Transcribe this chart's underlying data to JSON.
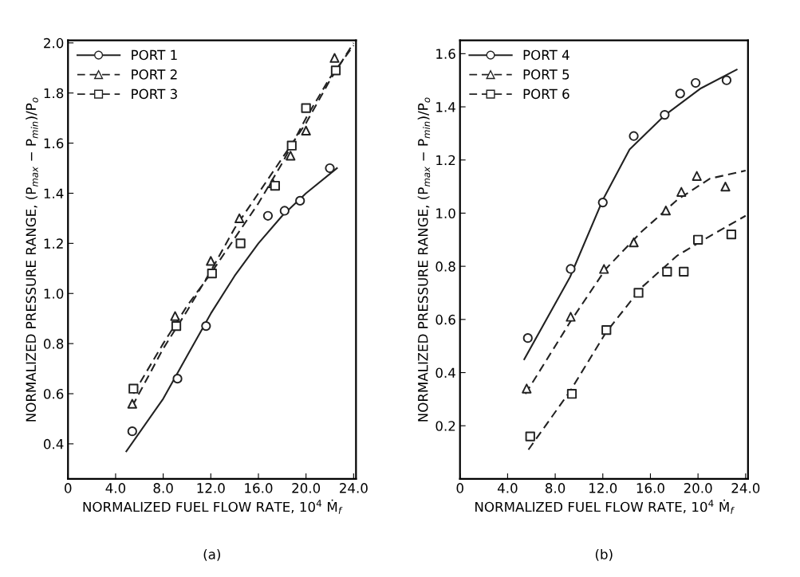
{
  "chart_data": [
    {
      "type": "scatter",
      "xlabel": "NORMALIZED FUEL FLOW RATE, 10$^{4}$ Ṁ$_{f}$",
      "ylabel": "NORMALIZED PRESSURE RANGE, (P$_{max}$ − P$_{min}$)/P$_{o}$",
      "annotations": [
        "(a)"
      ],
      "xlim": [
        0,
        24.2
      ],
      "xticks": [
        0,
        {
          "value": 4,
          "label": "4.0"
        },
        {
          "value": 8,
          "label": "8.0"
        },
        {
          "value": 12,
          "label": "12.0"
        },
        {
          "value": 16,
          "label": "16.0"
        },
        {
          "value": 20,
          "label": "20.0"
        },
        {
          "value": 24,
          "label": "24.0"
        }
      ],
      "ylim": [
        0.26,
        2.01
      ],
      "yticks": [
        {
          "value": 0.4,
          "label": "0.4"
        },
        {
          "value": 0.6,
          "label": "0.6"
        },
        {
          "value": 0.8,
          "label": "0.8"
        },
        {
          "value": 1.0,
          "label": "1.0"
        },
        {
          "value": 1.2,
          "label": "1.2"
        },
        {
          "value": 1.4,
          "label": "1.4"
        },
        {
          "value": 1.6,
          "label": "1.6"
        },
        {
          "value": 1.8,
          "label": "1.8"
        },
        {
          "value": 2.0,
          "label": "2.0"
        }
      ],
      "grid": false,
      "legend": "top left",
      "series": [
        {
          "name": "PORT 1",
          "marker": "circle",
          "line_style": "solid",
          "color": "#222222",
          "x": [
            5.4,
            9.2,
            11.6,
            16.8,
            18.2,
            19.5,
            22.0
          ],
          "values": [
            0.45,
            0.66,
            0.87,
            1.31,
            1.33,
            1.37,
            1.5
          ]
        },
        {
          "name": "PORT 2",
          "marker": "triangle",
          "line_style": "dashed",
          "color": "#222222",
          "x": [
            5.4,
            9.0,
            12.0,
            14.4,
            17.2,
            18.7,
            20.0,
            22.4
          ],
          "values": [
            0.56,
            0.91,
            1.13,
            1.3,
            1.44,
            1.55,
            1.65,
            1.94
          ]
        },
        {
          "name": "PORT 3",
          "marker": "square",
          "line_style": "dashed",
          "color": "#222222",
          "x": [
            5.5,
            9.1,
            12.1,
            14.5,
            17.4,
            18.8,
            20.0,
            22.5
          ],
          "values": [
            0.62,
            0.87,
            1.08,
            1.2,
            1.43,
            1.59,
            1.74,
            1.89
          ]
        },
        {
          "type": "line",
          "line_style": "solid",
          "color": "#222222",
          "x": [
            4.9,
            8,
            10,
            12,
            14,
            16,
            18,
            20,
            22.6
          ],
          "values": [
            0.37,
            0.58,
            0.75,
            0.92,
            1.07,
            1.2,
            1.31,
            1.4,
            1.5
          ]
        },
        {
          "type": "line",
          "line_style": "dashed",
          "color": "#222222",
          "x": [
            5.4,
            8,
            10,
            12,
            14,
            16,
            18,
            20,
            22,
            24
          ],
          "values": [
            0.55,
            0.78,
            0.93,
            1.09,
            1.26,
            1.4,
            1.54,
            1.68,
            1.85,
            2.0
          ]
        },
        {
          "type": "line",
          "line_style": "dashed",
          "color": "#222222",
          "x": [
            5.5,
            8,
            10,
            12,
            14,
            16,
            18,
            20,
            22,
            24
          ],
          "values": [
            0.6,
            0.8,
            0.95,
            1.08,
            1.22,
            1.36,
            1.52,
            1.7,
            1.86,
            1.99
          ]
        }
      ]
    },
    {
      "type": "scatter",
      "xlabel": "NORMALIZED FUEL FLOW RATE, 10$^{4}$ Ṁ$_{f}$",
      "ylabel": "NORMALIZED PRESSURE RANGE, (P$_{max}$ − P$_{min}$)/P$_{o}$",
      "annotations": [
        "(b)"
      ],
      "xlim": [
        0,
        24.2
      ],
      "xticks": [
        0,
        {
          "value": 4,
          "label": "4.0"
        },
        {
          "value": 8,
          "label": "8.0"
        },
        {
          "value": 12,
          "label": "12.0"
        },
        {
          "value": 16,
          "label": "16.0"
        },
        {
          "value": 20,
          "label": "20.0"
        },
        {
          "value": 24,
          "label": "24.0"
        }
      ],
      "ylim": [
        0,
        1.65
      ],
      "yticks": [
        {
          "value": 0.2,
          "label": "0.2"
        },
        {
          "value": 0.4,
          "label": "0.4"
        },
        {
          "value": 0.6,
          "label": "0.6"
        },
        {
          "value": 0.8,
          "label": "0.8"
        },
        {
          "value": 1.0,
          "label": "1.0"
        },
        {
          "value": 1.2,
          "label": "1.2"
        },
        {
          "value": 1.4,
          "label": "1.4"
        },
        {
          "value": 1.6,
          "label": "1.6"
        }
      ],
      "grid": false,
      "legend": "top left",
      "series": [
        {
          "name": "PORT 4",
          "marker": "circle",
          "line_style": "solid",
          "color": "#222222",
          "x": [
            5.7,
            9.3,
            12.0,
            14.6,
            17.2,
            18.5,
            19.8,
            22.4
          ],
          "values": [
            0.53,
            0.79,
            1.04,
            1.29,
            1.37,
            1.45,
            1.49,
            1.5
          ]
        },
        {
          "name": "PORT 5",
          "marker": "triangle",
          "line_style": "dashed",
          "color": "#222222",
          "x": [
            5.6,
            9.3,
            12.1,
            14.6,
            17.3,
            18.6,
            19.9,
            22.3
          ],
          "values": [
            0.34,
            0.61,
            0.79,
            0.89,
            1.01,
            1.08,
            1.14,
            1.1
          ]
        },
        {
          "name": "PORT 6",
          "marker": "square",
          "line_style": "dashed",
          "color": "#222222",
          "x": [
            5.9,
            9.4,
            12.3,
            15.0,
            17.4,
            18.8,
            20.0,
            22.8
          ],
          "values": [
            0.16,
            0.32,
            0.56,
            0.7,
            0.78,
            0.78,
            0.9,
            0.92
          ]
        },
        {
          "type": "line",
          "line_style": "solid",
          "color": "#222222",
          "x": [
            5.4,
            9.25,
            12,
            14.25,
            17.25,
            20.25,
            23.25
          ],
          "values": [
            0.45,
            0.76,
            1.05,
            1.24,
            1.37,
            1.47,
            1.54
          ]
        },
        {
          "type": "line",
          "line_style": "dashed",
          "color": "#222222",
          "x": [
            5.5,
            9.25,
            12.25,
            15.25,
            18.25,
            21,
            24
          ],
          "values": [
            0.32,
            0.59,
            0.79,
            0.93,
            1.05,
            1.13,
            1.16
          ]
        },
        {
          "type": "line",
          "line_style": "dashed",
          "color": "#222222",
          "x": [
            5.75,
            9.25,
            12.25,
            15.25,
            18.25,
            21.25,
            24
          ],
          "values": [
            0.11,
            0.33,
            0.55,
            0.72,
            0.84,
            0.92,
            0.99
          ]
        }
      ]
    }
  ]
}
